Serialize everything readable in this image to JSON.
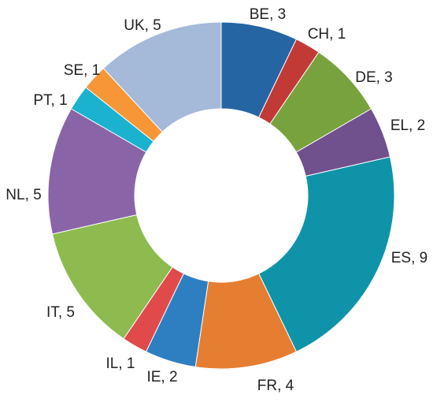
{
  "chart_data": {
    "type": "pie",
    "variant": "donut",
    "categories": [
      "BE",
      "CH",
      "DE",
      "EL",
      "ES",
      "FR",
      "IE",
      "IL",
      "IT",
      "NL",
      "PT",
      "SE",
      "UK"
    ],
    "values": [
      3,
      1,
      3,
      2,
      9,
      4,
      2,
      1,
      5,
      5,
      1,
      1,
      5
    ],
    "labels": [
      "BE, 3",
      "CH, 1",
      "DE, 3",
      "EL, 2",
      "ES, 9",
      "FR, 4",
      "IE, 2",
      "IL, 1",
      "IT, 5",
      "NL, 5",
      "PT, 1",
      "SE, 1",
      "UK, 5"
    ],
    "colors": [
      "#2565A3",
      "#C23A36",
      "#78A23E",
      "#71508E",
      "#0F93A9",
      "#E57E31",
      "#2E7FC2",
      "#E04A4A",
      "#8DBB4F",
      "#8965A8",
      "#1AB2CF",
      "#F69637",
      "#A5B9D9"
    ],
    "start_angle_deg": 0,
    "direction": "clockwise",
    "legend": "none",
    "title": ""
  }
}
